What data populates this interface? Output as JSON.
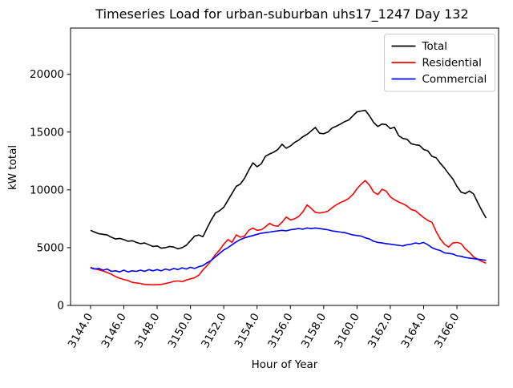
{
  "chart_data": {
    "type": "line",
    "title": "Timeseries Load for urban-suburban uhs17_1247  Day 132",
    "xlabel": "Hour of Year",
    "ylabel": "kW total",
    "xlim": [
      3142.8,
      3168.5
    ],
    "ylim": [
      0,
      24000
    ],
    "grid": false,
    "legend_position": "upper right",
    "xticks": [
      3144,
      3146,
      3148,
      3150,
      3152,
      3154,
      3156,
      3158,
      3160,
      3162,
      3164,
      3166
    ],
    "xtick_labels": [
      "3144.0",
      "3146.0",
      "3148.0",
      "3150.0",
      "3152.0",
      "3154.0",
      "3156.0",
      "3158.0",
      "3160.0",
      "3162.0",
      "3164.0",
      "3166.0"
    ],
    "yticks": [
      0,
      5000,
      10000,
      15000,
      20000
    ],
    "ytick_labels": [
      "0",
      "5000",
      "10000",
      "15000",
      "20000"
    ],
    "x": [
      3144.0,
      3144.25,
      3144.5,
      3144.75,
      3145.0,
      3145.25,
      3145.5,
      3145.75,
      3146.0,
      3146.25,
      3146.5,
      3146.75,
      3147.0,
      3147.25,
      3147.5,
      3147.75,
      3148.0,
      3148.25,
      3148.5,
      3148.75,
      3149.0,
      3149.25,
      3149.5,
      3149.75,
      3150.0,
      3150.25,
      3150.5,
      3150.75,
      3151.0,
      3151.25,
      3151.5,
      3151.75,
      3152.0,
      3152.25,
      3152.5,
      3152.75,
      3153.0,
      3153.25,
      3153.5,
      3153.75,
      3154.0,
      3154.25,
      3154.5,
      3154.75,
      3155.0,
      3155.25,
      3155.5,
      3155.75,
      3156.0,
      3156.25,
      3156.5,
      3156.75,
      3157.0,
      3157.25,
      3157.5,
      3157.75,
      3158.0,
      3158.25,
      3158.5,
      3158.75,
      3159.0,
      3159.25,
      3159.5,
      3159.75,
      3160.0,
      3160.25,
      3160.5,
      3160.75,
      3161.0,
      3161.25,
      3161.5,
      3161.75,
      3162.0,
      3162.25,
      3162.5,
      3162.75,
      3163.0,
      3163.25,
      3163.5,
      3163.75,
      3164.0,
      3164.25,
      3164.5,
      3164.75,
      3165.0,
      3165.25,
      3165.5,
      3165.75,
      3166.0,
      3166.25,
      3166.5,
      3166.75,
      3167.0,
      3167.25,
      3167.5,
      3167.75
    ],
    "series": [
      {
        "name": "Total",
        "color": "#000000",
        "values": [
          6500,
          6350,
          6200,
          6150,
          6100,
          5900,
          5750,
          5800,
          5700,
          5550,
          5600,
          5450,
          5350,
          5400,
          5250,
          5100,
          5150,
          4950,
          5000,
          5100,
          5050,
          4900,
          5000,
          5200,
          5600,
          6000,
          6100,
          5950,
          6700,
          7400,
          8000,
          8200,
          8500,
          9100,
          9700,
          10300,
          10500,
          11000,
          11700,
          12340,
          12000,
          12250,
          12900,
          13100,
          13260,
          13500,
          13950,
          13600,
          13800,
          14100,
          14300,
          14600,
          14800,
          15100,
          15400,
          14900,
          14860,
          15000,
          15340,
          15500,
          15690,
          15900,
          16040,
          16400,
          16750,
          16820,
          16880,
          16400,
          15830,
          15480,
          15700,
          15650,
          15300,
          15420,
          14700,
          14450,
          14380,
          14000,
          13900,
          13850,
          13500,
          13380,
          12900,
          12780,
          12300,
          11880,
          11400,
          10950,
          10300,
          9800,
          9680,
          9900,
          9650,
          8900,
          8200,
          7560
        ]
      },
      {
        "name": "Residential",
        "color": "#ff0000",
        "values": [
          3300,
          3180,
          3080,
          2980,
          2850,
          2700,
          2500,
          2350,
          2250,
          2150,
          2000,
          1950,
          1900,
          1820,
          1800,
          1780,
          1800,
          1820,
          1900,
          1980,
          2080,
          2120,
          2050,
          2200,
          2300,
          2400,
          2620,
          3080,
          3450,
          3900,
          4400,
          4800,
          5300,
          5700,
          5450,
          6100,
          5900,
          6000,
          6500,
          6700,
          6500,
          6550,
          6800,
          7100,
          6900,
          6850,
          7200,
          7650,
          7400,
          7500,
          7700,
          8100,
          8700,
          8400,
          8050,
          8000,
          8050,
          8150,
          8450,
          8700,
          8900,
          9050,
          9250,
          9600,
          10100,
          10500,
          10800,
          10400,
          9800,
          9600,
          10050,
          9900,
          9400,
          9150,
          8950,
          8800,
          8600,
          8300,
          8200,
          7900,
          7600,
          7350,
          7200,
          6400,
          5750,
          5300,
          5050,
          5400,
          5450,
          5350,
          4900,
          4600,
          4200,
          4000,
          3800,
          3650
        ]
      },
      {
        "name": "Commercial",
        "color": "#0000ff",
        "values": [
          3250,
          3150,
          3200,
          3050,
          3150,
          2950,
          3000,
          2900,
          3050,
          2900,
          3000,
          2950,
          3050,
          2950,
          3100,
          3000,
          3100,
          3000,
          3150,
          3050,
          3200,
          3100,
          3250,
          3150,
          3300,
          3200,
          3350,
          3450,
          3700,
          3900,
          4200,
          4500,
          4800,
          5000,
          5250,
          5500,
          5700,
          5850,
          5950,
          6050,
          6150,
          6250,
          6300,
          6350,
          6400,
          6450,
          6500,
          6450,
          6550,
          6600,
          6650,
          6600,
          6700,
          6650,
          6700,
          6650,
          6600,
          6550,
          6450,
          6400,
          6350,
          6300,
          6200,
          6100,
          6050,
          6000,
          5850,
          5750,
          5550,
          5450,
          5400,
          5350,
          5300,
          5250,
          5200,
          5150,
          5250,
          5300,
          5400,
          5350,
          5450,
          5250,
          5000,
          4850,
          4750,
          4550,
          4500,
          4450,
          4300,
          4250,
          4150,
          4100,
          4050,
          4000,
          3950,
          3900
        ]
      }
    ]
  }
}
